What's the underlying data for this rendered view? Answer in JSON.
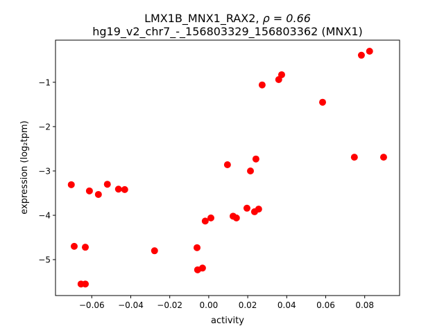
{
  "chart_data": {
    "type": "scatter",
    "title_line1_prefix": "LMX1B_MNX1_RAX2, ",
    "title_rho": "ρ = 0.66",
    "title_line2": "hg19_v2_chr7_-_156803329_156803362 (MNX1)",
    "xlabel": "activity",
    "ylabel": "expression (log₂tpm)",
    "xlim": [
      -0.0786,
      0.0979
    ],
    "ylim": [
      -5.81,
      -0.05
    ],
    "xticks": [
      -0.06,
      -0.04,
      -0.02,
      0.0,
      0.02,
      0.04,
      0.06,
      0.08
    ],
    "xtick_labels": [
      "−0.06",
      "−0.04",
      "−0.02",
      "0.00",
      "0.02",
      "0.04",
      "0.06",
      "0.08"
    ],
    "yticks": [
      -1,
      -2,
      -3,
      -4,
      -5
    ],
    "ytick_labels": [
      "−1",
      "−2",
      "−3",
      "−4",
      "−5"
    ],
    "grid": false,
    "marker_color": "#ff0000",
    "points": [
      [
        -0.0705,
        -3.31
      ],
      [
        -0.069,
        -4.7
      ],
      [
        -0.0655,
        -5.55
      ],
      [
        -0.0633,
        -5.55
      ],
      [
        -0.0633,
        -4.72
      ],
      [
        -0.0612,
        -3.45
      ],
      [
        -0.0566,
        -3.53
      ],
      [
        -0.052,
        -3.3
      ],
      [
        -0.0463,
        -3.41
      ],
      [
        -0.0431,
        -3.42
      ],
      [
        -0.0278,
        -4.8
      ],
      [
        -0.006,
        -4.73
      ],
      [
        -0.0057,
        -5.23
      ],
      [
        -0.0032,
        -5.19
      ],
      [
        -0.0018,
        -4.13
      ],
      [
        0.0011,
        -4.06
      ],
      [
        0.0096,
        -2.86
      ],
      [
        0.0125,
        -4.02
      ],
      [
        0.0142,
        -4.06
      ],
      [
        0.0196,
        -3.84
      ],
      [
        0.0214,
        -3.0
      ],
      [
        0.0235,
        -3.92
      ],
      [
        0.0242,
        -2.73
      ],
      [
        0.0256,
        -3.86
      ],
      [
        0.0274,
        -1.06
      ],
      [
        0.0359,
        -0.94
      ],
      [
        0.0374,
        -0.83
      ],
      [
        0.0584,
        -1.45
      ],
      [
        0.0747,
        -2.69
      ],
      [
        0.0783,
        -0.39
      ],
      [
        0.0825,
        -0.3
      ],
      [
        0.0897,
        -2.69
      ]
    ]
  }
}
